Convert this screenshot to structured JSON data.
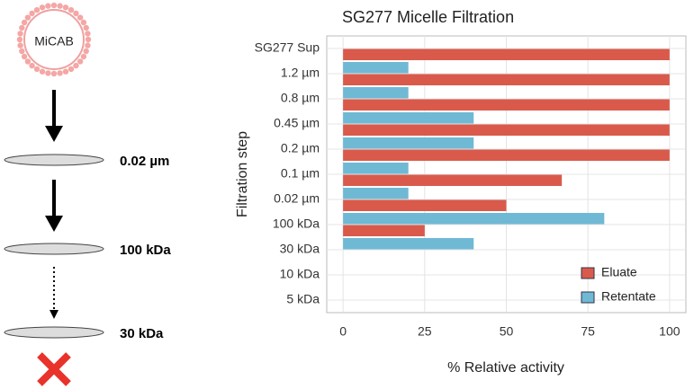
{
  "diagram": {
    "micelle_label": "MiCAB",
    "steps": [
      "0.02 µm",
      "100 kDa",
      "30 kDa"
    ]
  },
  "chart_data": {
    "type": "hbar",
    "title": "SG277 Micelle Filtration",
    "x_label": "% Relative activity",
    "y_label": "Filtration step",
    "categories": [
      "SG277 Sup",
      "1.2 µm",
      "0.8 µm",
      "0.45 µm",
      "0.2 µm",
      "0.1 µm",
      "0.02 µm",
      "100 kDa",
      "30 kDa",
      "10 kDa",
      "5 kDa"
    ],
    "series": [
      {
        "name": "Eluate",
        "color": "#d95a4b",
        "values": [
          100,
          100,
          100,
          100,
          100,
          67,
          50,
          25,
          null,
          null,
          null
        ]
      },
      {
        "name": "Retentate",
        "color": "#6fb9d5",
        "values": [
          null,
          20,
          20,
          40,
          40,
          20,
          20,
          80,
          40,
          null,
          null
        ]
      }
    ],
    "xlim": [
      -5,
      105
    ],
    "xticks": [
      0,
      25,
      50,
      75,
      100
    ],
    "grid": true,
    "legend": "bottom-right"
  }
}
